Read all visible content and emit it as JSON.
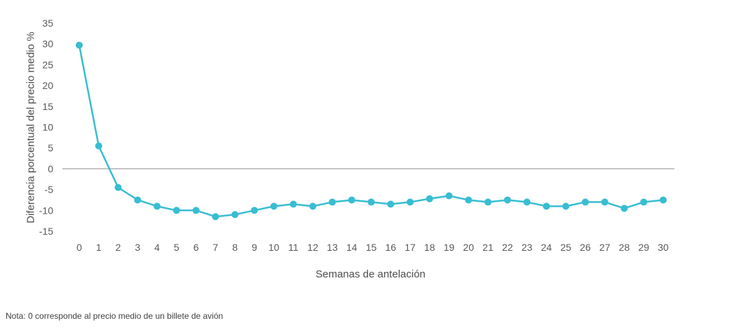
{
  "chart_data": {
    "type": "line",
    "title": "",
    "x": [
      0,
      1,
      2,
      3,
      4,
      5,
      6,
      7,
      8,
      9,
      10,
      11,
      12,
      13,
      14,
      15,
      16,
      17,
      18,
      19,
      20,
      21,
      22,
      23,
      24,
      25,
      26,
      27,
      28,
      29,
      30
    ],
    "values": [
      29.7,
      5.5,
      -4.5,
      -7.5,
      -9,
      -10,
      -10,
      -11.5,
      -11,
      -10,
      -9,
      -8.5,
      -9,
      -8,
      -7.5,
      -8,
      -8.5,
      -8,
      -7.2,
      -6.5,
      -7.5,
      -8,
      -7.5,
      -8,
      -9,
      -9,
      -8,
      -8,
      -9.5,
      -8,
      -7.5
    ],
    "xlabel": "Semanas de antelación",
    "ylabel": "Diferencia porcentual del precio medio %",
    "ylim": [
      -15,
      35
    ],
    "yticks": [
      35,
      30,
      25,
      20,
      15,
      10,
      5,
      0,
      -5,
      -10,
      -15
    ],
    "grid": false,
    "legend": "none",
    "marker": "circle",
    "line_color": "#38bdd2",
    "zero_line_color": "#8c8c8c"
  },
  "note": "Nota: 0 corresponde al precio medio de un billete de avión"
}
